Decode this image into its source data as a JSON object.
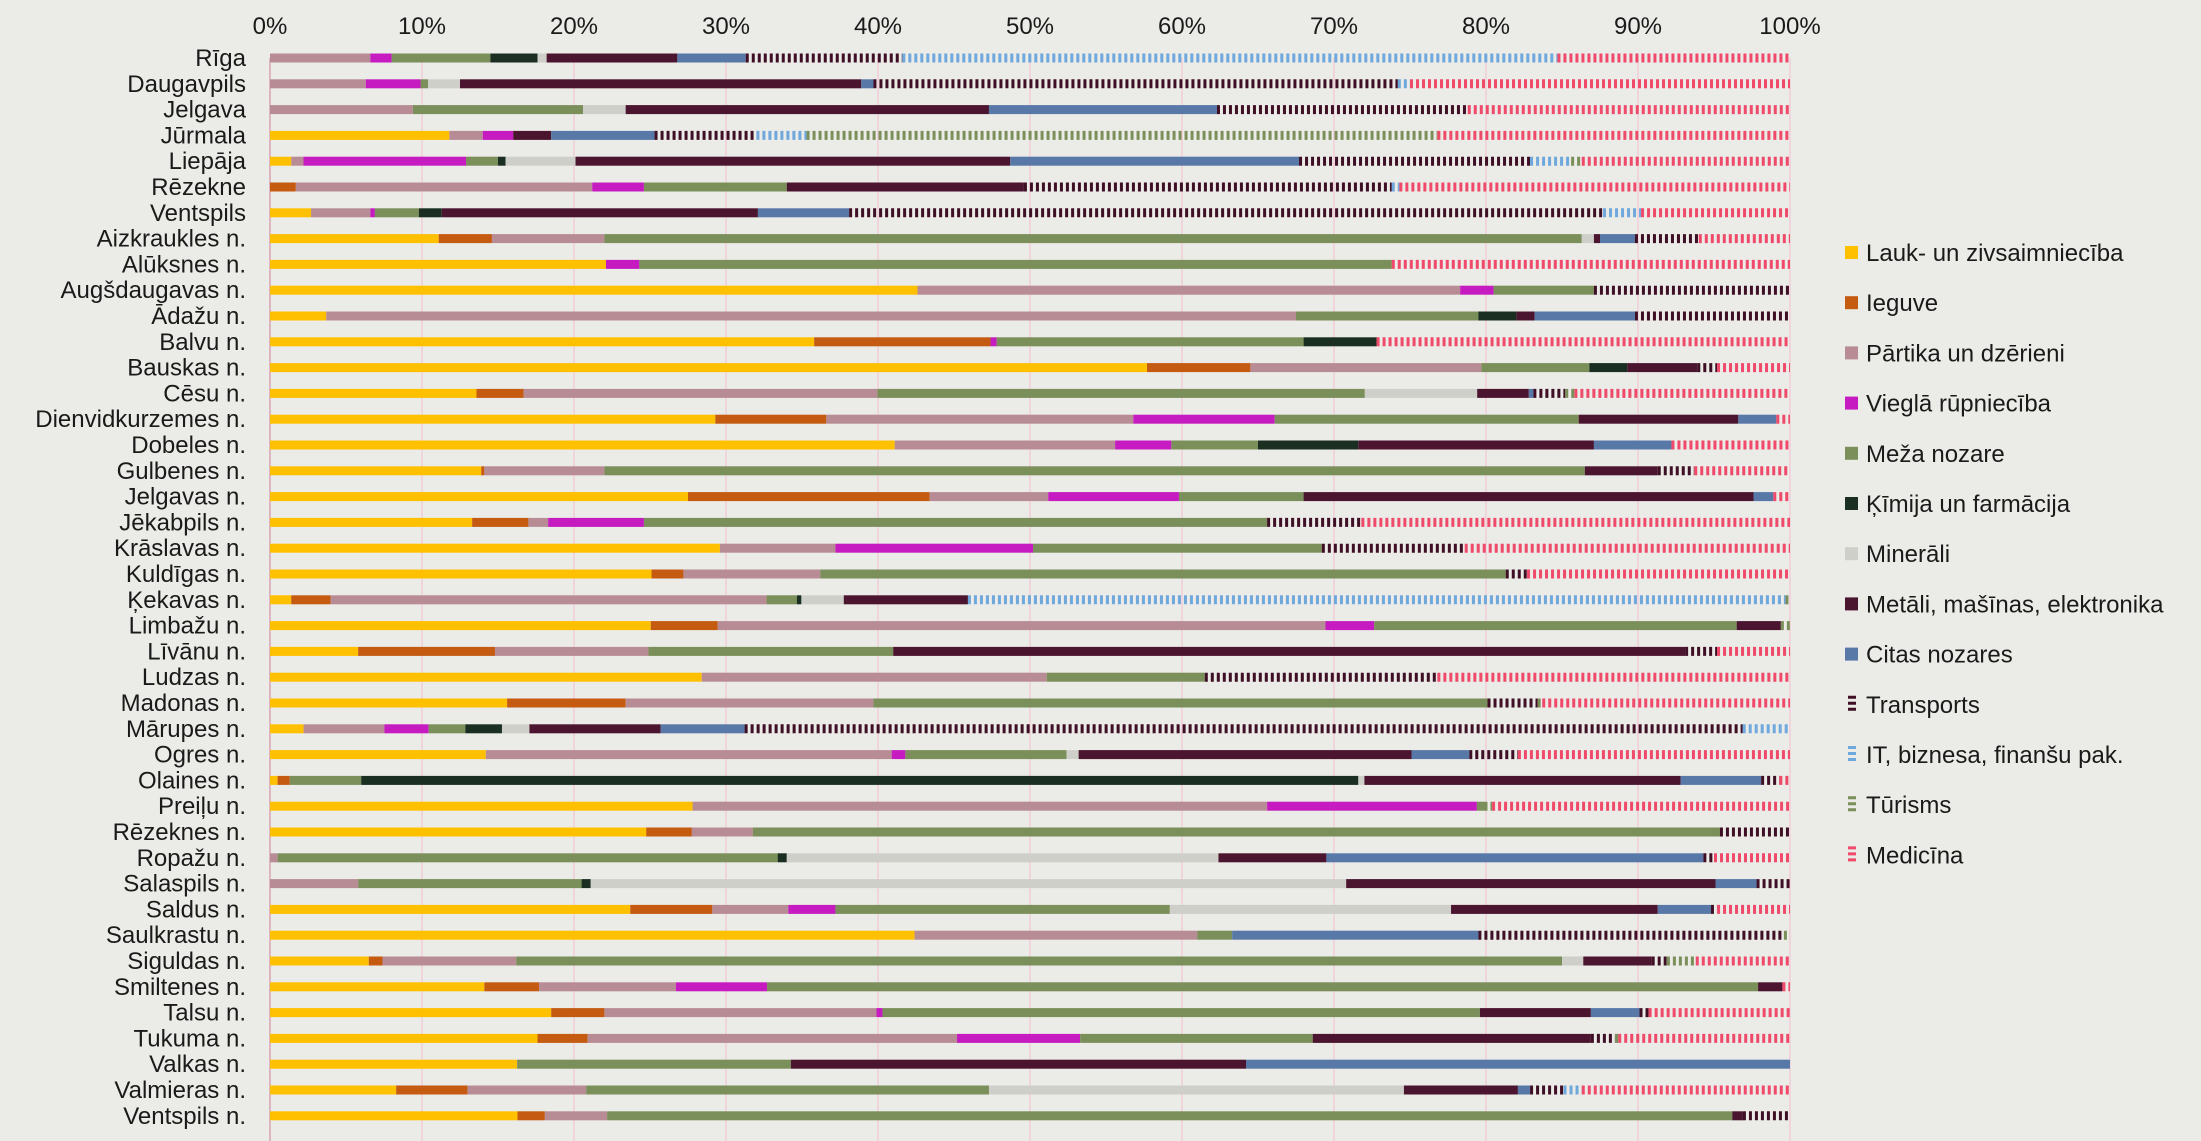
{
  "chart_data": {
    "type": "bar",
    "orientation": "horizontal",
    "stacked": true,
    "normalized": true,
    "xlim": [
      0,
      100
    ],
    "x_ticks": [
      "0%",
      "10%",
      "20%",
      "30%",
      "40%",
      "50%",
      "60%",
      "70%",
      "80%",
      "90%",
      "100%"
    ],
    "grid": true,
    "legend_position": "right",
    "title": "",
    "xlabel": "",
    "ylabel": "",
    "categories": [
      "Rīga",
      "Daugavpils",
      "Jelgava",
      "Jūrmala",
      "Liepāja",
      "Rēzekne",
      "Ventspils",
      "Aizkraukles n.",
      "Alūksnes n.",
      "Augšdaugavas n.",
      "Ādažu n.",
      "Balvu n.",
      "Bauskas n.",
      "Cēsu n.",
      "Dienvidkurzemes n.",
      "Dobeles n.",
      "Gulbenes n.",
      "Jelgavas n.",
      "Jēkabpils n.",
      "Krāslavas n.",
      "Kuldīgas n.",
      "Ķekavas n.",
      "Limbažu n.",
      "Līvānu n.",
      "Ludzas n.",
      "Madonas n.",
      "Mārupes n.",
      "Ogres n.",
      "Olaines n.",
      "Preiļu n.",
      "Rēzeknes n.",
      "Ropažu n.",
      "Salaspils n.",
      "Saldus n.",
      "Saulkrastu n.",
      "Siguldas n.",
      "Smiltenes n.",
      "Talsu n.",
      "Tukuma n.",
      "Valkas n.",
      "Valmieras n.",
      "Ventspils n."
    ],
    "series": [
      {
        "name": "Lauk- un zivsaimniecība",
        "color": "#ffc000",
        "pattern": "solid",
        "values": [
          0,
          0,
          0,
          11.8,
          1.4,
          0,
          2.7,
          11.1,
          22.1,
          42.6,
          3.7,
          35.8,
          57.7,
          13.6,
          29.3,
          41.1,
          13.9,
          27.5,
          13.3,
          29.6,
          25.1,
          1.4,
          25.0,
          5.8,
          28.4,
          15.6,
          2.2,
          14.2,
          0.5,
          27.8,
          24.7,
          0,
          0,
          23.7,
          42.4,
          6.5,
          14.1,
          18.5,
          17.6,
          13.9,
          8.3,
          16.3
        ]
      },
      {
        "name": "Ieguve",
        "color": "#c55a11",
        "pattern": "solid",
        "values": [
          0,
          0,
          0,
          0,
          0,
          1.7,
          0,
          3.5,
          0,
          0,
          0,
          11.6,
          6.8,
          3.1,
          7.3,
          0,
          0.2,
          15.9,
          3.7,
          0,
          2.1,
          2.6,
          4.4,
          9.0,
          0,
          7.8,
          0,
          0,
          0.8,
          0,
          3.0,
          0,
          0,
          5.4,
          0,
          0.9,
          3.6,
          3.5,
          3.3,
          0,
          4.7,
          1.8
        ]
      },
      {
        "name": "Pārtika un dzērieni",
        "color": "#b88c94",
        "pattern": "solid",
        "values": [
          6.6,
          6.3,
          9.4,
          2.2,
          0.8,
          19.5,
          3.9,
          7.4,
          0,
          35.7,
          63.8,
          0,
          15.2,
          23.3,
          20.2,
          14.5,
          7.9,
          7.8,
          1.3,
          7.6,
          9.0,
          28.8,
          39.9,
          10.1,
          22.7,
          16.3,
          5.3,
          26.7,
          0,
          37.8,
          4.0,
          0.5,
          5.8,
          5.0,
          18.6,
          8.8,
          9.0,
          17.9,
          24.3,
          0,
          7.8,
          4.1
        ]
      },
      {
        "name": "Vieglā rūpniecība",
        "color": "#c51bc0",
        "pattern": "solid",
        "values": [
          1.4,
          3.6,
          0,
          2.0,
          10.7,
          3.4,
          0.3,
          0,
          2.2,
          2.2,
          0,
          0.4,
          0,
          0,
          9.3,
          3.7,
          0,
          8.6,
          6.3,
          13.0,
          0,
          0,
          3.2,
          0,
          0,
          0,
          2.9,
          0.9,
          0,
          13.8,
          0,
          0,
          0,
          3.1,
          0,
          0,
          6.0,
          0.4,
          8.1,
          0,
          0,
          0
        ]
      },
      {
        "name": "Meža nozare",
        "color": "#7b8f5a",
        "pattern": "solid",
        "values": [
          6.5,
          0.5,
          11.2,
          0,
          2.1,
          9.4,
          2.9,
          64.3,
          49.5,
          6.6,
          12.0,
          20.2,
          7.1,
          32.1,
          20.0,
          5.7,
          64.5,
          8.2,
          41.0,
          19.0,
          45.1,
          2.0,
          23.8,
          16.1,
          10.4,
          40.4,
          2.4,
          10.6,
          4.7,
          0.5,
          63.5,
          32.9,
          14.7,
          22.0,
          2.3,
          68.8,
          65.2,
          39.3,
          15.3,
          15.4,
          26.5,
          74.1
        ]
      },
      {
        "name": "Ķīmija un farmācija",
        "color": "#1a2e22",
        "pattern": "solid",
        "values": [
          3.1,
          0,
          0,
          0,
          0.5,
          0,
          1.5,
          0,
          0,
          0,
          2.5,
          4.8,
          2.5,
          0,
          0,
          6.6,
          0,
          0,
          0,
          0,
          0,
          0.3,
          0,
          0,
          0,
          0,
          2.4,
          0,
          65.6,
          0,
          0,
          0.6,
          0.6,
          0,
          0,
          0,
          0,
          0,
          0,
          0,
          0,
          0
        ]
      },
      {
        "name": "Minerāli",
        "color": "#cfcfca",
        "pattern": "solid",
        "values": [
          0.6,
          2.1,
          2.8,
          0,
          4.6,
          0,
          0,
          0.8,
          0,
          0,
          0,
          0,
          0,
          7.4,
          0,
          0,
          0,
          0,
          0,
          0,
          0,
          2.8,
          0,
          0,
          0,
          0,
          1.8,
          0.8,
          0.4,
          0,
          0,
          28.4,
          49.7,
          18.5,
          0,
          1.4,
          0,
          0,
          0,
          0,
          27.3,
          0
        ]
      },
      {
        "name": "Metāli, mašīnas, elektronika",
        "color": "#4b1530",
        "pattern": "solid",
        "values": [
          8.6,
          26.4,
          23.9,
          2.5,
          28.6,
          15.6,
          20.8,
          0.4,
          0,
          0,
          1.2,
          0,
          4.6,
          3.4,
          10.5,
          15.5,
          4.8,
          29.6,
          0,
          0,
          0,
          8.2,
          2.9,
          52.1,
          0,
          0,
          8.6,
          21.9,
          20.8,
          0,
          0,
          7.1,
          24.3,
          13.6,
          0,
          4.5,
          1.6,
          7.3,
          18.3,
          25.6,
          7.5,
          0.7
        ]
      },
      {
        "name": "Citas nozares",
        "color": "#5878a8",
        "pattern": "solid",
        "values": [
          4.5,
          0.8,
          15.0,
          6.8,
          19.0,
          0,
          6.0,
          2.3,
          0,
          0,
          6.6,
          0,
          0,
          0.3,
          2.5,
          5.1,
          0,
          1.3,
          0,
          0,
          0,
          0,
          0,
          0,
          0,
          0,
          5.5,
          3.8,
          5.3,
          0,
          0,
          24.8,
          2.7,
          3.5,
          16.2,
          0,
          0,
          3.2,
          0,
          30.6,
          0.8,
          0
        ]
      },
      {
        "name": "Transports",
        "color": "#3e0f25",
        "pattern": "dashed",
        "values": [
          10.3,
          34.5,
          16.5,
          6.7,
          15.2,
          24.2,
          49.6,
          4.2,
          0,
          12.9,
          10.2,
          0,
          1.3,
          2.1,
          0,
          0,
          2.4,
          0,
          6.2,
          9.4,
          1.4,
          0,
          0,
          2.1,
          15.3,
          3.3,
          65.4,
          3.2,
          1.2,
          0,
          4.6,
          0.7,
          2.2,
          0.4,
          20.1,
          1.0,
          0,
          0.6,
          1.6,
          0,
          2.2,
          3.1
        ]
      },
      {
        "name": "IT, biznesa, finanšu pak.",
        "color": "#6fa8dc",
        "pattern": "dashed",
        "values": [
          43.1,
          0.8,
          0,
          3.3,
          2.7,
          0.5,
          2.5,
          0,
          0,
          0,
          0,
          0,
          0,
          0,
          0,
          0,
          0,
          0,
          0,
          0,
          0,
          54.0,
          0,
          0,
          0,
          0,
          3.1,
          0,
          0,
          0,
          0,
          0,
          0,
          0,
          0,
          0,
          0,
          0,
          0,
          0,
          1.2,
          0
        ]
      },
      {
        "name": "Tūrisms",
        "color": "#7b8f5a",
        "pattern": "dashed",
        "values": [
          0,
          0,
          0,
          41.5,
          0.7,
          0,
          0,
          0,
          0,
          0,
          0,
          0,
          0,
          0.6,
          0,
          0,
          0,
          0,
          0,
          0,
          0,
          0.3,
          0.6,
          0,
          0,
          0.3,
          0,
          0,
          0,
          0.5,
          0,
          0,
          0,
          0,
          0.4,
          1.9,
          0,
          0,
          0.2,
          0,
          0,
          0
        ]
      },
      {
        "name": "Medicīna",
        "color": "#f04a6a",
        "pattern": "dashed",
        "values": [
          15.3,
          25.0,
          21.2,
          23.2,
          13.7,
          25.7,
          9.8,
          6.0,
          26.2,
          0,
          0,
          27.2,
          4.8,
          14.2,
          0.9,
          7.8,
          6.3,
          1.1,
          28.2,
          21.4,
          17.3,
          0,
          0,
          4.8,
          23.2,
          16.3,
          0,
          17.9,
          0.7,
          19.6,
          0,
          5.0,
          0,
          4.8,
          0,
          6.2,
          0.5,
          9.3,
          11.3,
          0,
          13.7,
          0
        ]
      }
    ]
  }
}
